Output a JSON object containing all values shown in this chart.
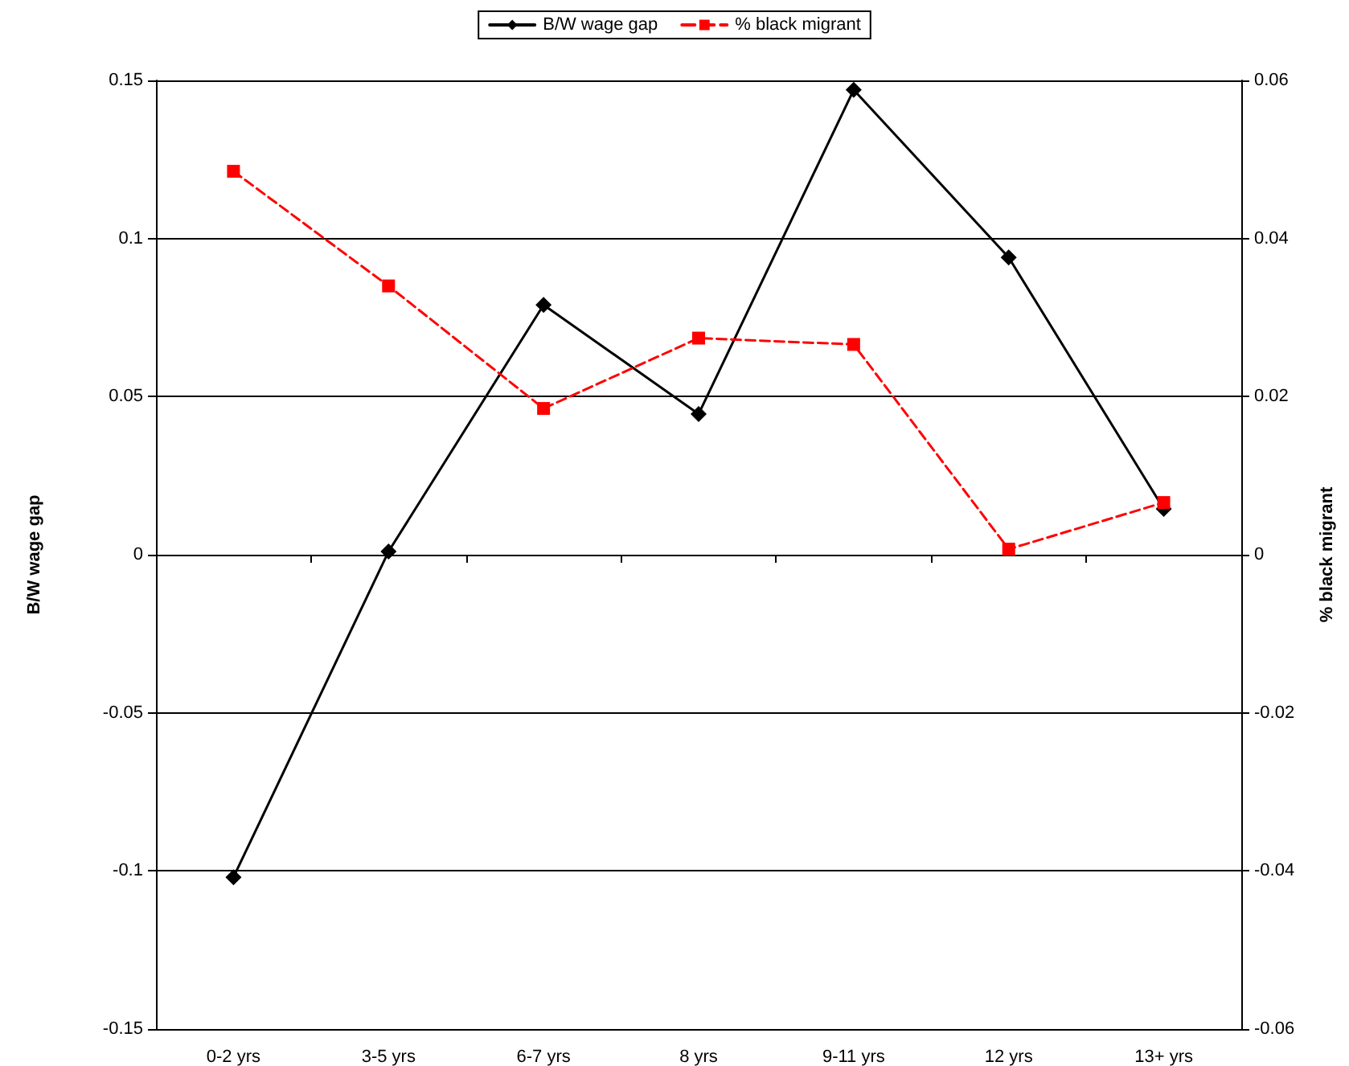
{
  "chart_data": {
    "type": "line",
    "categories": [
      "0-2 yrs",
      "3-5 yrs",
      "6-7 yrs",
      "8 yrs",
      "9-11 yrs",
      "12 yrs",
      "13+ yrs"
    ],
    "series": [
      {
        "name": "B/W wage gap",
        "color": "#000000",
        "marker": "diamond",
        "line_style": "solid",
        "values": [
          -0.102,
          0.001,
          0.079,
          0.0445,
          0.147,
          0.094,
          0.0145
        ]
      },
      {
        "name": "% black migrant",
        "color": "#ff0000",
        "marker": "square",
        "line_style": "dashed",
        "axis": "y2",
        "values": [
          0.0485,
          0.034,
          0.0185,
          0.0274,
          0.0266,
          0.0007,
          0.0066
        ]
      }
    ],
    "ylabel": "B/W wage gap",
    "y2label": "% black migrant",
    "ylim": [
      -0.15,
      0.15
    ],
    "yticks": [
      -0.15,
      -0.1,
      -0.05,
      0,
      0.05,
      0.1,
      0.15
    ],
    "y2lim": [
      -0.06,
      0.06
    ],
    "y2ticks": [
      -0.06,
      -0.04,
      -0.02,
      0,
      0.02,
      0.04,
      0.06
    ],
    "grid": "y",
    "legend": "top"
  }
}
